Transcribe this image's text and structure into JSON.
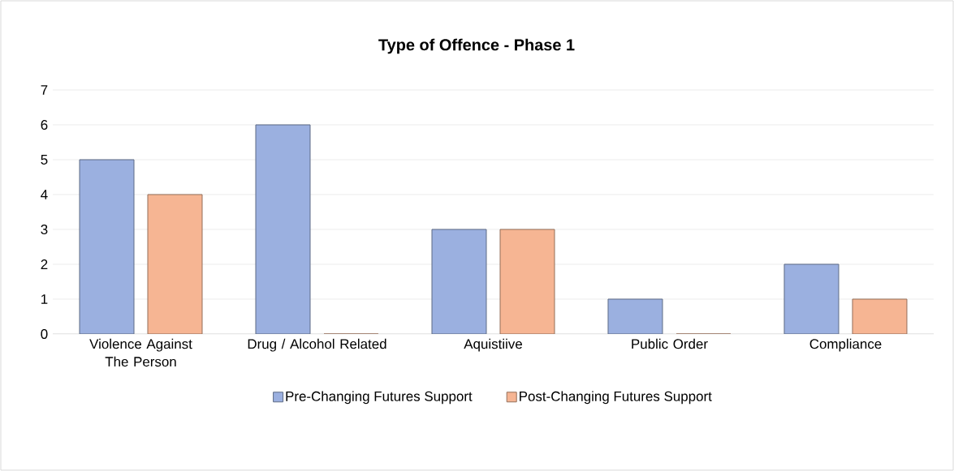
{
  "chart_data": {
    "type": "bar",
    "title": "Type of Offence - Phase 1",
    "categories": [
      "Violence Against The Person",
      "Drug / Alcohol Related",
      "Aquistiive",
      "Public Order",
      "Compliance"
    ],
    "series": [
      {
        "name": "Pre-Changing Futures Support",
        "color": "#9bb0e0",
        "values": [
          5,
          6,
          3,
          1,
          2
        ]
      },
      {
        "name": "Post-Changing Futures Support",
        "color": "#f6b593",
        "values": [
          4,
          0,
          3,
          0,
          1
        ]
      }
    ],
    "ylim": [
      0,
      7
    ],
    "yticks": [
      0,
      1,
      2,
      3,
      4,
      5,
      6,
      7
    ],
    "grid": "y",
    "legend": "bottom"
  }
}
